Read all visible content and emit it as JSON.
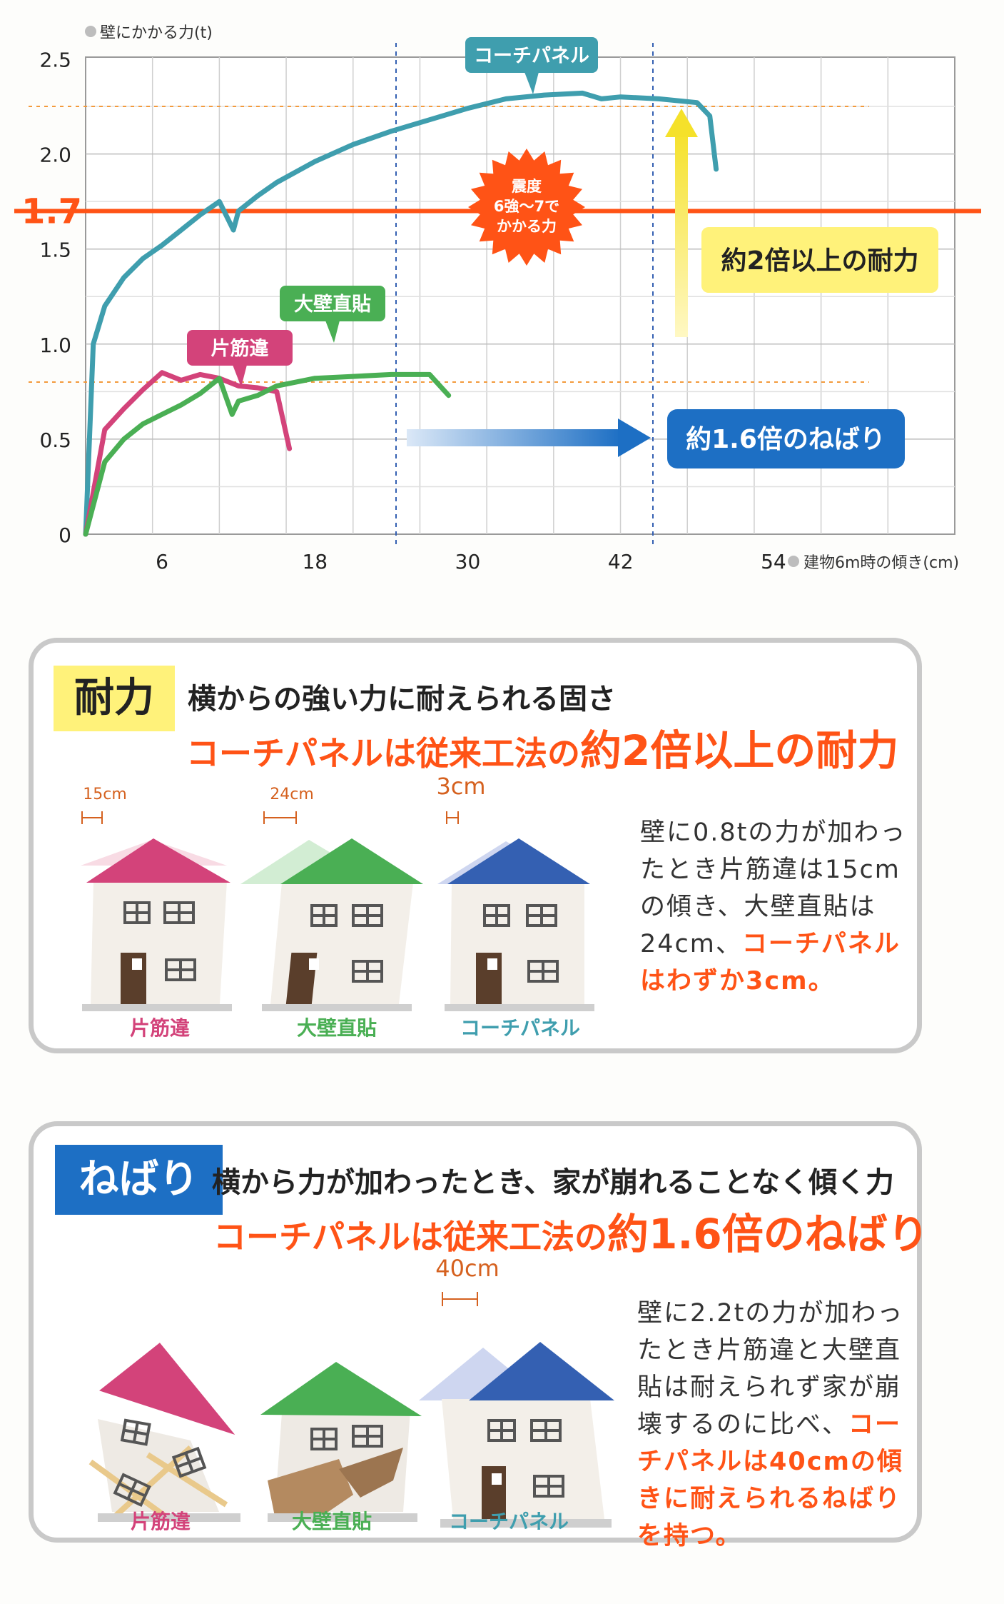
{
  "chart_data": {
    "type": "line",
    "ylabel": "壁にかかる力(t)",
    "xlabel": "建物6m時の傾き(cm)",
    "yticks": [
      "0",
      "0.5",
      "1.0",
      "1.5",
      "2.0",
      "2.5"
    ],
    "xticks": [
      "6",
      "18",
      "30",
      "42",
      "54"
    ],
    "ylim": [
      0,
      2.5
    ],
    "reference_line": {
      "value": 1.7,
      "label": "1.7"
    },
    "burst_label": [
      "震度",
      "6強〜7で",
      "かかる力"
    ],
    "series": [
      {
        "name": "コーチパネル",
        "color": "#3f9eae",
        "x": [
          0,
          0.6,
          1.5,
          3,
          4.5,
          6,
          7.5,
          9,
          10.5,
          11.6,
          12,
          13.5,
          15,
          18,
          21,
          24,
          27,
          30,
          33,
          36,
          39,
          40.5,
          42,
          45,
          48,
          49,
          49.5
        ],
        "y": [
          0,
          1.0,
          1.2,
          1.35,
          1.45,
          1.52,
          1.6,
          1.68,
          1.75,
          1.6,
          1.7,
          1.78,
          1.85,
          1.96,
          2.05,
          2.12,
          2.18,
          2.24,
          2.29,
          2.31,
          2.32,
          2.29,
          2.3,
          2.29,
          2.27,
          2.2,
          1.92
        ]
      },
      {
        "name": "片筋違",
        "color": "#d3437a",
        "x": [
          0,
          1.5,
          3,
          4.5,
          6,
          7.5,
          9,
          10.5,
          12,
          13.5,
          15,
          16
        ],
        "y": [
          0,
          0.55,
          0.66,
          0.76,
          0.85,
          0.81,
          0.84,
          0.82,
          0.78,
          0.77,
          0.75,
          0.45
        ]
      },
      {
        "name": "大壁直貼",
        "color": "#4aaf54",
        "x": [
          0,
          1.5,
          3,
          4.5,
          6,
          7.5,
          9,
          10.5,
          11.5,
          12,
          13.5,
          15,
          18,
          21,
          24,
          27,
          28.5
        ],
        "y": [
          0,
          0.38,
          0.5,
          0.58,
          0.63,
          0.68,
          0.74,
          0.82,
          0.63,
          0.7,
          0.73,
          0.78,
          0.82,
          0.83,
          0.84,
          0.84,
          0.73
        ]
      }
    ],
    "callouts": {
      "strength": "約2倍以上の耐力",
      "tenacity": "約1.6倍のねばり"
    },
    "colors": {
      "reference": "#ff5316",
      "yellow": "#f5e12a",
      "blue": "#1d6fc4"
    }
  },
  "card1": {
    "badge": "耐力",
    "heading": "横からの強い力に耐えられる固さ",
    "sub_prefix": "コーチパネルは従来工法の",
    "sub_big": "約2倍以上の耐力",
    "measures": [
      "15cm",
      "24cm",
      "3cm"
    ],
    "houses": [
      "片筋違",
      "大壁直貼",
      "コーチパネル"
    ],
    "desc_plain": "壁に0.8tの力が加わったとき片筋違は15cmの傾き、大壁直貼は24cm、",
    "desc_hl": "コーチパネルはわずか3cm。"
  },
  "card2": {
    "badge": "ねばり",
    "heading": "横から力が加わったとき、家が崩れることなく傾く力",
    "sub_prefix": "コーチパネルは従来工法の",
    "sub_big": "約1.6倍のねばり",
    "measure": "40cm",
    "houses": [
      "片筋違",
      "大壁直貼",
      "コーチパネル"
    ],
    "desc_plain": "壁に2.2tの力が加わったとき片筋違と大壁直貼は耐えられず家が崩壊するのに比べ、",
    "desc_hl": "コーチパネルは40cmの傾きに耐えられるねばりを持つ。"
  }
}
